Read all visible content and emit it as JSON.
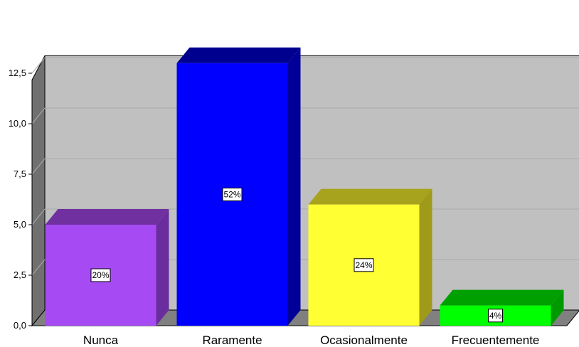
{
  "chart_data": {
    "type": "bar",
    "title": "",
    "xlabel": "",
    "ylabel": "",
    "categories": [
      "Nunca",
      "Raramente",
      "Ocasionalmente",
      "Frecuentemente"
    ],
    "values": [
      5,
      13,
      6,
      1
    ],
    "data_labels": [
      "20%",
      "52%",
      "24%",
      "4%"
    ],
    "ylim": [
      0,
      14
    ],
    "yticks": [
      0,
      2.5,
      5,
      7.5,
      10,
      12.5
    ],
    "ytick_labels": [
      "0,0",
      "2,5",
      "5,0",
      "7,5",
      "10,0",
      "12,5"
    ],
    "grid": true,
    "style": "3d",
    "colors": {
      "front": [
        "#a64bf4",
        "#0000ff",
        "#ffff33",
        "#00ff00"
      ],
      "side": [
        "#6a2d9e",
        "#000099",
        "#a09a1a",
        "#009900"
      ],
      "top": [
        "#7030a0",
        "#00008f",
        "#a8a31c",
        "#00a000"
      ],
      "plot_back": "#c0c0c0",
      "plot_floor": "#808080",
      "plot_wall": "#707070"
    }
  }
}
